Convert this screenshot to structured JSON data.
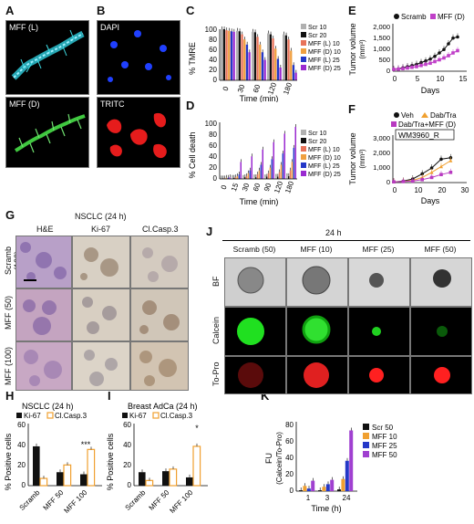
{
  "panels": {
    "A": "A",
    "B": "B",
    "C": "C",
    "D": "D",
    "E": "E",
    "F": "F",
    "G": "G",
    "H": "H",
    "I": "I",
    "J": "J",
    "K": "K"
  },
  "panelA": {
    "top_label": "MFF (L)",
    "bottom_label": "MFF (D)"
  },
  "panelB": {
    "top_label": "DAPI",
    "bottom_label": "TRITC"
  },
  "panelC": {
    "ylabel": "% TMRE",
    "xlabel": "Time (min)",
    "yticks": [
      "0",
      "20",
      "40",
      "60",
      "80",
      "100"
    ],
    "xticks": [
      "0",
      "30",
      "60",
      "120",
      "180"
    ],
    "legend": [
      "Scr 10",
      "Scr 20",
      "MFF (L) 10",
      "MFF (D) 10",
      "MFF (L) 25",
      "MFF (D) 25"
    ]
  },
  "panelD": {
    "ylabel": "% Cell death",
    "xlabel": "Time (min)",
    "yticks": [
      "0",
      "20",
      "40",
      "60",
      "80",
      "100"
    ],
    "xticks": [
      "0",
      "15",
      "30",
      "60",
      "90",
      "120",
      "180"
    ],
    "legend": [
      "Scr 10",
      "Scr 20",
      "MFF (L) 10",
      "MFF (D) 10",
      "MFF (L) 25",
      "MFF (D) 25"
    ]
  },
  "panelE": {
    "ylabel": "Tumor volume",
    "yunit": "(mm³)",
    "xlabel": "Days",
    "yticks": [
      "0",
      "500",
      "1,000",
      "1,500",
      "2,000"
    ],
    "xticks": [
      "0",
      "5",
      "10",
      "15"
    ],
    "legend": [
      "Scramb",
      "MFF (D)"
    ]
  },
  "panelF": {
    "ylabel": "Tumor volume",
    "yunit": "(mm³)",
    "xlabel": "Days",
    "yticks": [
      "0",
      "1,000",
      "2,000",
      "3,000"
    ],
    "xticks": [
      "0",
      "10",
      "20",
      "30"
    ],
    "legend": [
      "Veh",
      "Dab/Tra",
      "Dab/Tra+MFF (D)"
    ],
    "inset": "WM3960_R"
  },
  "panelG": {
    "header": "NSCLC (24 h)",
    "cols": [
      "H&E",
      "Ki-67",
      "Cl.Casp.3"
    ],
    "rows": [
      "Scramb (100)",
      "MFF (50)",
      "MFF (100)"
    ]
  },
  "panelJ": {
    "header": "24 h",
    "cols": [
      "Scramb (50)",
      "MFF (10)",
      "MFF (25)",
      "MFF (50)"
    ],
    "rows": [
      "BF",
      "Calcein",
      "To-Pro"
    ]
  },
  "panelH": {
    "title": "NSCLC (24 h)",
    "ylabel": "% Positive cells",
    "yticks": [
      "0",
      "20",
      "40",
      "60"
    ],
    "categories": [
      "Scramb",
      "MFF 50",
      "MFF 100"
    ],
    "legend": [
      "Ki-67",
      "Cl.Casp.3"
    ],
    "annot": "***"
  },
  "panelI": {
    "title": "Breast AdCa (24 h)",
    "ylabel": "% Positive cells",
    "yticks": [
      "0",
      "20",
      "40",
      "60"
    ],
    "categories": [
      "Scramb",
      "MFF 50",
      "MFF 100"
    ],
    "legend": [
      "Ki-67",
      "Cl.Casp.3"
    ],
    "annot": "*"
  },
  "panelK": {
    "ylabel": "FU",
    "ylabel2": "(Calcein/To-Pro)",
    "xlabel": "Time (h)",
    "yticks": [
      "0",
      "20",
      "40",
      "60",
      "80"
    ],
    "xticks": [
      "1",
      "3",
      "24"
    ],
    "legend": [
      "Scr 50",
      "MFF 10",
      "MFF 25",
      "MFF 50"
    ]
  },
  "colors": {
    "scr10": "#b0b0b0",
    "scr20": "#111111",
    "mffl10": "#e8735a",
    "mffd10": "#f0a040",
    "mffl25": "#2438c8",
    "mffd25": "#9a2ad0",
    "scramb": "#111111",
    "mffd": "#c040c8",
    "veh": "#111111",
    "dabtra": "#f0a030",
    "dabtramff": "#b83ac0",
    "ki67": "#111111",
    "casp": "#f0a030",
    "k_scr": "#111111",
    "k_m10": "#f0a030",
    "k_m25": "#2438c8",
    "k_m50": "#a040d0"
  },
  "chart_data": [
    {
      "type": "bar",
      "panel": "C",
      "categories": [
        "0",
        "30",
        "60",
        "120",
        "180"
      ],
      "ylim": [
        0,
        100
      ],
      "series": [
        {
          "name": "Scr 10",
          "values": [
            100,
            97,
            95,
            92,
            90
          ]
        },
        {
          "name": "Scr 20",
          "values": [
            100,
            96,
            94,
            90,
            88
          ]
        },
        {
          "name": "MFF (L) 10",
          "values": [
            98,
            90,
            85,
            82,
            80
          ]
        },
        {
          "name": "MFF (D) 10",
          "values": [
            97,
            80,
            70,
            62,
            58
          ]
        },
        {
          "name": "MFF (L) 25",
          "values": [
            96,
            70,
            55,
            42,
            30
          ]
        },
        {
          "name": "MFF (D) 25",
          "values": [
            95,
            55,
            40,
            25,
            15
          ]
        }
      ]
    },
    {
      "type": "bar",
      "panel": "D",
      "categories": [
        "0",
        "15",
        "30",
        "60",
        "90",
        "120",
        "180"
      ],
      "ylim": [
        0,
        100
      ],
      "series": [
        {
          "name": "Scr 10",
          "values": [
            1,
            2,
            2,
            3,
            3,
            4,
            5
          ]
        },
        {
          "name": "Scr 20",
          "values": [
            1,
            2,
            3,
            3,
            4,
            4,
            5
          ]
        },
        {
          "name": "MFF (L) 10",
          "values": [
            1,
            3,
            5,
            8,
            10,
            12,
            15
          ]
        },
        {
          "name": "MFF (D) 10",
          "values": [
            2,
            5,
            10,
            15,
            20,
            25,
            30
          ]
        },
        {
          "name": "MFF (L) 25",
          "values": [
            2,
            8,
            15,
            25,
            35,
            45,
            55
          ]
        },
        {
          "name": "MFF (D) 25",
          "values": [
            3,
            30,
            40,
            52,
            65,
            80,
            92
          ]
        }
      ]
    },
    {
      "type": "line",
      "panel": "E",
      "xlim": [
        0,
        15
      ],
      "ylim": [
        0,
        2000
      ],
      "series": [
        {
          "name": "Scramb",
          "x": [
            0,
            1,
            2,
            3,
            4,
            5,
            6,
            7,
            8,
            9,
            10,
            11,
            12,
            13,
            14
          ],
          "values": [
            80,
            100,
            150,
            200,
            250,
            300,
            380,
            450,
            530,
            650,
            800,
            950,
            1200,
            1450,
            1500
          ]
        },
        {
          "name": "MFF (D)",
          "x": [
            0,
            1,
            2,
            3,
            4,
            5,
            6,
            7,
            8,
            9,
            10,
            11,
            12,
            13,
            14
          ],
          "values": [
            80,
            90,
            110,
            140,
            170,
            200,
            250,
            300,
            350,
            420,
            500,
            580,
            680,
            800,
            900
          ]
        }
      ]
    },
    {
      "type": "line",
      "panel": "F",
      "xlim": [
        0,
        30
      ],
      "ylim": [
        0,
        3000
      ],
      "series": [
        {
          "name": "Veh",
          "x": [
            0,
            4,
            8,
            12,
            16,
            20,
            24
          ],
          "values": [
            50,
            100,
            250,
            600,
            1000,
            1600,
            1700
          ]
        },
        {
          "name": "Dab/Tra",
          "x": [
            0,
            4,
            8,
            12,
            16,
            20,
            24
          ],
          "values": [
            50,
            80,
            150,
            350,
            700,
            1100,
            1500
          ]
        },
        {
          "name": "Dab/Tra+MFF (D)",
          "x": [
            0,
            4,
            8,
            12,
            16,
            20,
            24
          ],
          "values": [
            50,
            70,
            100,
            200,
            350,
            550,
            700
          ]
        }
      ]
    },
    {
      "type": "bar",
      "panel": "H",
      "categories": [
        "Scramb",
        "MFF 50",
        "MFF 100"
      ],
      "ylim": [
        0,
        60
      ],
      "series": [
        {
          "name": "Ki-67",
          "values": [
            38,
            13,
            11
          ]
        },
        {
          "name": "Cl.Casp.3",
          "values": [
            7,
            20,
            35
          ]
        }
      ]
    },
    {
      "type": "bar",
      "panel": "I",
      "categories": [
        "Scramb",
        "MFF 50",
        "MFF 100"
      ],
      "ylim": [
        0,
        60
      ],
      "series": [
        {
          "name": "Ki-67",
          "values": [
            13,
            14,
            8
          ]
        },
        {
          "name": "Cl.Casp.3",
          "values": [
            5,
            16,
            38
          ]
        }
      ]
    },
    {
      "type": "bar",
      "panel": "K",
      "categories": [
        "1",
        "3",
        "24"
      ],
      "ylim": [
        0,
        80
      ],
      "series": [
        {
          "name": "Scr 50",
          "values": [
            1,
            1,
            2
          ]
        },
        {
          "name": "MFF 10",
          "values": [
            6,
            5,
            14
          ]
        },
        {
          "name": "MFF 25",
          "values": [
            3,
            8,
            35
          ]
        },
        {
          "name": "MFF 50",
          "values": [
            12,
            13,
            70
          ]
        }
      ]
    }
  ]
}
